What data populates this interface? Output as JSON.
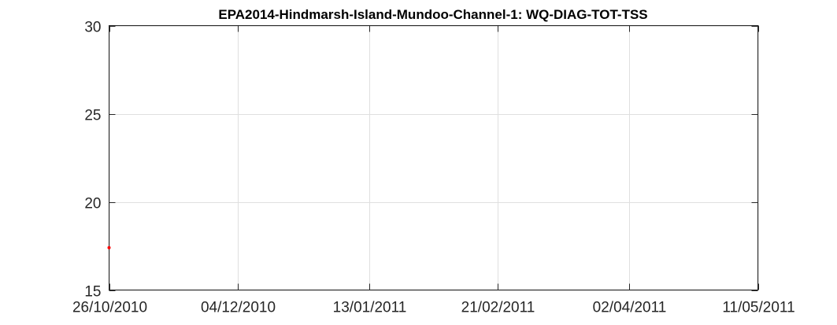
{
  "chart_data": {
    "type": "scatter",
    "title": "EPA2014-Hindmarsh-Island-Mundoo-Channel-1: WQ-DIAG-TOT-TSS",
    "xlabel": "",
    "ylabel": "",
    "x_axis_type": "date",
    "xlim": [
      "2010-10-26",
      "2011-05-11"
    ],
    "ylim": [
      15,
      30
    ],
    "x_ticks": [
      {
        "date": "2010-10-26",
        "label": "26/10/2010"
      },
      {
        "date": "2010-12-04",
        "label": "04/12/2010"
      },
      {
        "date": "2011-01-13",
        "label": "13/01/2011"
      },
      {
        "date": "2011-02-21",
        "label": "21/02/2011"
      },
      {
        "date": "2011-04-02",
        "label": "02/04/2011"
      },
      {
        "date": "2011-05-11",
        "label": "11/05/2011"
      }
    ],
    "y_ticks": [
      {
        "value": 15,
        "label": "15"
      },
      {
        "value": 20,
        "label": "20"
      },
      {
        "value": 25,
        "label": "25"
      },
      {
        "value": 30,
        "label": "30"
      }
    ],
    "grid": true,
    "series": [
      {
        "color": "#ff0000",
        "points": [
          {
            "x": "2010-10-26",
            "y": 17.4
          }
        ]
      }
    ]
  }
}
